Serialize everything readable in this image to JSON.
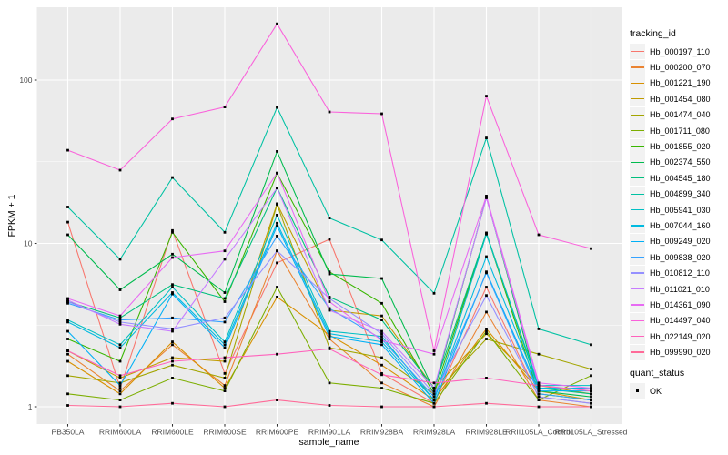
{
  "figure": {
    "background": "#FFFFFF",
    "panel_background": "#EBEBEB",
    "gridline_color": "#FFFFFF",
    "axis_text_color": "#4D4D4D",
    "tick_color": "#333333",
    "point_color": "#000000"
  },
  "chart_data": {
    "type": "line",
    "xlabel": "sample_name",
    "ylabel": "FPKM + 1",
    "y_scale": "log10",
    "y_tick_labels": [
      "1",
      "10",
      "100"
    ],
    "y_tick_values": [
      1,
      10,
      100
    ],
    "y_minor_breaks": [
      3.162,
      31.62
    ],
    "ylim": [
      0.78,
      280
    ],
    "legend_position": "right",
    "point_shape": "filled-square",
    "categories": [
      "PB350LA",
      "RRIM600LA",
      "RRIM600LE",
      "RRIM600SE",
      "RRIM600PE",
      "RRIM901LA",
      "RRIM928BA",
      "RRIM928LA",
      "RRIM928LE",
      "RRII105LA_Control",
      "RRII105LA_Stressed"
    ],
    "series": [
      {
        "name": "Hb_000197_110",
        "color": "#F8766D",
        "values": [
          13.5,
          1.3,
          12.0,
          1.6,
          7.6,
          10.6,
          1.6,
          1.05,
          5.4,
          1.15,
          1.05
        ]
      },
      {
        "name": "Hb_000200_070",
        "color": "#EA8331",
        "values": [
          2.1,
          1.25,
          2.4,
          1.35,
          9.0,
          2.6,
          1.4,
          1.0,
          3.8,
          1.1,
          1.0
        ]
      },
      {
        "name": "Hb_001221_190",
        "color": "#D89000",
        "values": [
          1.9,
          1.2,
          2.5,
          1.3,
          4.7,
          2.75,
          1.8,
          1.1,
          3.0,
          1.25,
          1.1
        ]
      },
      {
        "name": "Hb_001454_080",
        "color": "#C09B00",
        "values": [
          2.2,
          1.5,
          2.0,
          1.9,
          17.5,
          3.9,
          3.6,
          1.3,
          2.8,
          1.35,
          1.2
        ]
      },
      {
        "name": "Hb_001474_040",
        "color": "#A3A500",
        "values": [
          1.55,
          1.4,
          1.8,
          1.5,
          17.3,
          2.3,
          2.0,
          1.2,
          2.6,
          2.1,
          1.7
        ]
      },
      {
        "name": "Hb_001711_080",
        "color": "#7CAE00",
        "values": [
          1.2,
          1.1,
          1.5,
          1.25,
          5.4,
          1.4,
          1.3,
          1.05,
          2.9,
          1.1,
          1.55
        ]
      },
      {
        "name": "Hb_001855_020",
        "color": "#39B600",
        "values": [
          2.6,
          1.9,
          11.7,
          4.4,
          26.9,
          6.7,
          4.3,
          1.2,
          11.5,
          1.2,
          1.1
        ]
      },
      {
        "name": "Hb_002374_550",
        "color": "#00BB4E",
        "values": [
          11.3,
          5.2,
          8.6,
          5.0,
          36.6,
          6.5,
          6.1,
          1.25,
          19.2,
          1.25,
          1.15
        ]
      },
      {
        "name": "Hb_004545_180",
        "color": "#00BF7D",
        "values": [
          4.4,
          3.5,
          5.6,
          4.6,
          21.9,
          4.7,
          3.4,
          1.3,
          11.6,
          1.3,
          1.2
        ]
      },
      {
        "name": "Hb_004899_340",
        "color": "#00C1A3",
        "values": [
          16.7,
          8.0,
          25.3,
          11.7,
          68.0,
          14.3,
          10.5,
          4.95,
          44.2,
          3.0,
          2.4
        ]
      },
      {
        "name": "Hb_005941_030",
        "color": "#00BFC4",
        "values": [
          3.4,
          2.4,
          5.4,
          2.5,
          14.9,
          2.9,
          2.7,
          1.1,
          11.4,
          1.35,
          1.35
        ]
      },
      {
        "name": "Hb_007044_160",
        "color": "#00BAE0",
        "values": [
          3.3,
          2.3,
          5.0,
          2.4,
          13.3,
          2.8,
          2.5,
          1.1,
          8.3,
          1.3,
          1.3
        ]
      },
      {
        "name": "Hb_009249_020",
        "color": "#00B0F6",
        "values": [
          2.9,
          1.35,
          4.9,
          2.3,
          12.8,
          2.7,
          2.4,
          1.05,
          6.7,
          1.25,
          1.25
        ]
      },
      {
        "name": "Hb_009838_020",
        "color": "#35A2FF",
        "values": [
          4.3,
          3.4,
          3.5,
          3.3,
          11.1,
          4.0,
          2.6,
          1.15,
          6.6,
          1.2,
          1.1
        ]
      },
      {
        "name": "Hb_010812_110",
        "color": "#9590FF",
        "values": [
          4.4,
          3.3,
          3.0,
          3.5,
          9.0,
          4.6,
          2.8,
          1.2,
          4.8,
          1.15,
          1.05
        ]
      },
      {
        "name": "Hb_011021_010",
        "color": "#C77CFF",
        "values": [
          4.5,
          3.2,
          2.9,
          8.0,
          21.8,
          3.9,
          2.9,
          1.3,
          19.0,
          1.35,
          1.25
        ]
      },
      {
        "name": "Hb_014361_090",
        "color": "#E76BF3",
        "values": [
          4.6,
          3.6,
          8.2,
          9.0,
          27.0,
          4.4,
          2.55,
          2.1,
          19.5,
          1.4,
          1.3
        ]
      },
      {
        "name": "Hb_014497_040",
        "color": "#FA62DB",
        "values": [
          37.2,
          28.1,
          57.8,
          68.4,
          221.0,
          63.8,
          62.2,
          2.2,
          79.8,
          11.3,
          9.3
        ]
      },
      {
        "name": "Hb_022149_020",
        "color": "#FF62BC",
        "values": [
          2.2,
          1.55,
          1.9,
          2.0,
          2.1,
          2.26,
          1.57,
          1.4,
          1.5,
          1.35,
          1.25
        ]
      },
      {
        "name": "Hb_099990_020",
        "color": "#FF6A98",
        "values": [
          1.02,
          1.0,
          1.05,
          1.0,
          1.1,
          1.02,
          1.0,
          1.0,
          1.05,
          1.0,
          1.0
        ]
      }
    ]
  },
  "legend": {
    "title": "tracking_id",
    "key_background": "#F2F2F2"
  },
  "quant_legend": {
    "title": "quant_status",
    "items": [
      {
        "label": "OK"
      }
    ]
  }
}
